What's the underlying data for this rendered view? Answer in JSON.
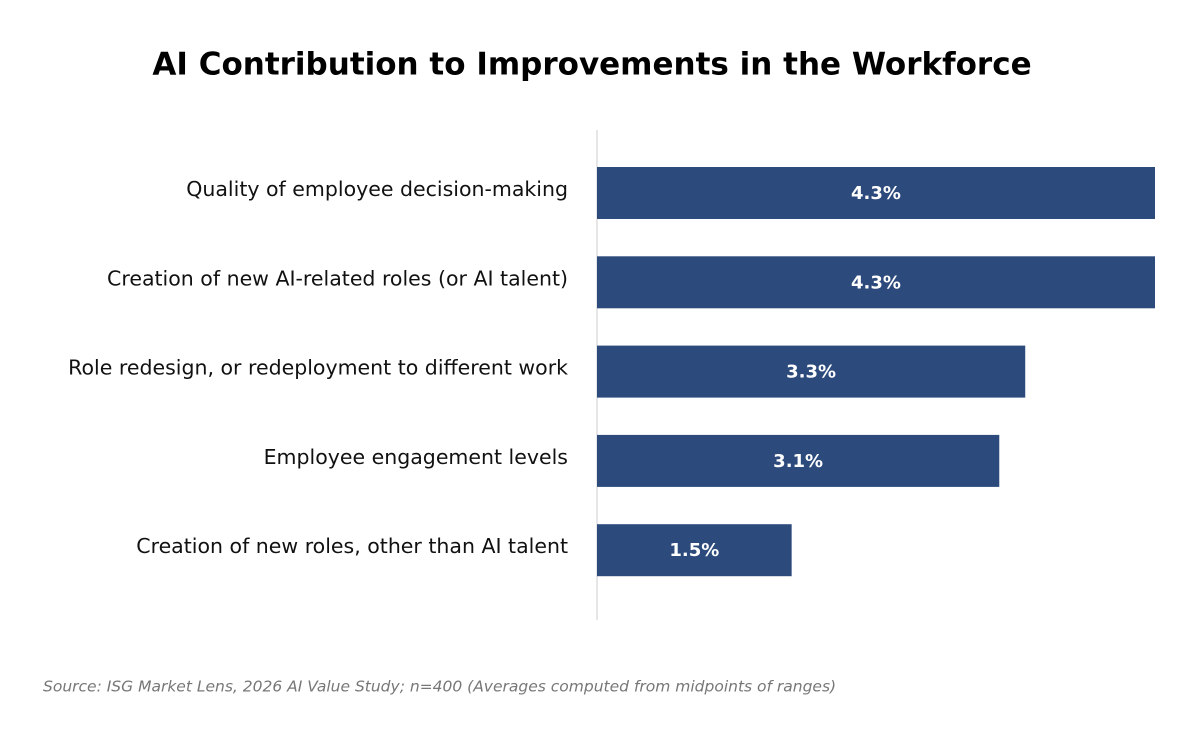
{
  "chart_data": {
    "type": "bar",
    "orientation": "horizontal",
    "title": "AI Contribution to Improvements in the Workforce",
    "categories": [
      "Quality of employee decision-making",
      "Creation of new AI-related roles (or AI talent)",
      "Role redesign, or redeployment to different work",
      "Employee engagement levels",
      "Creation of new roles, other than AI talent"
    ],
    "values": [
      4.3,
      4.3,
      3.3,
      3.1,
      1.5
    ],
    "value_labels": [
      "4.3%",
      "4.3%",
      "3.3%",
      "3.1%",
      "1.5%"
    ],
    "color": "#2c4a7b",
    "source": "Source: ISG Market Lens, 2026 AI Value Study; n=400 (Averages computed from midpoints of ranges)"
  }
}
